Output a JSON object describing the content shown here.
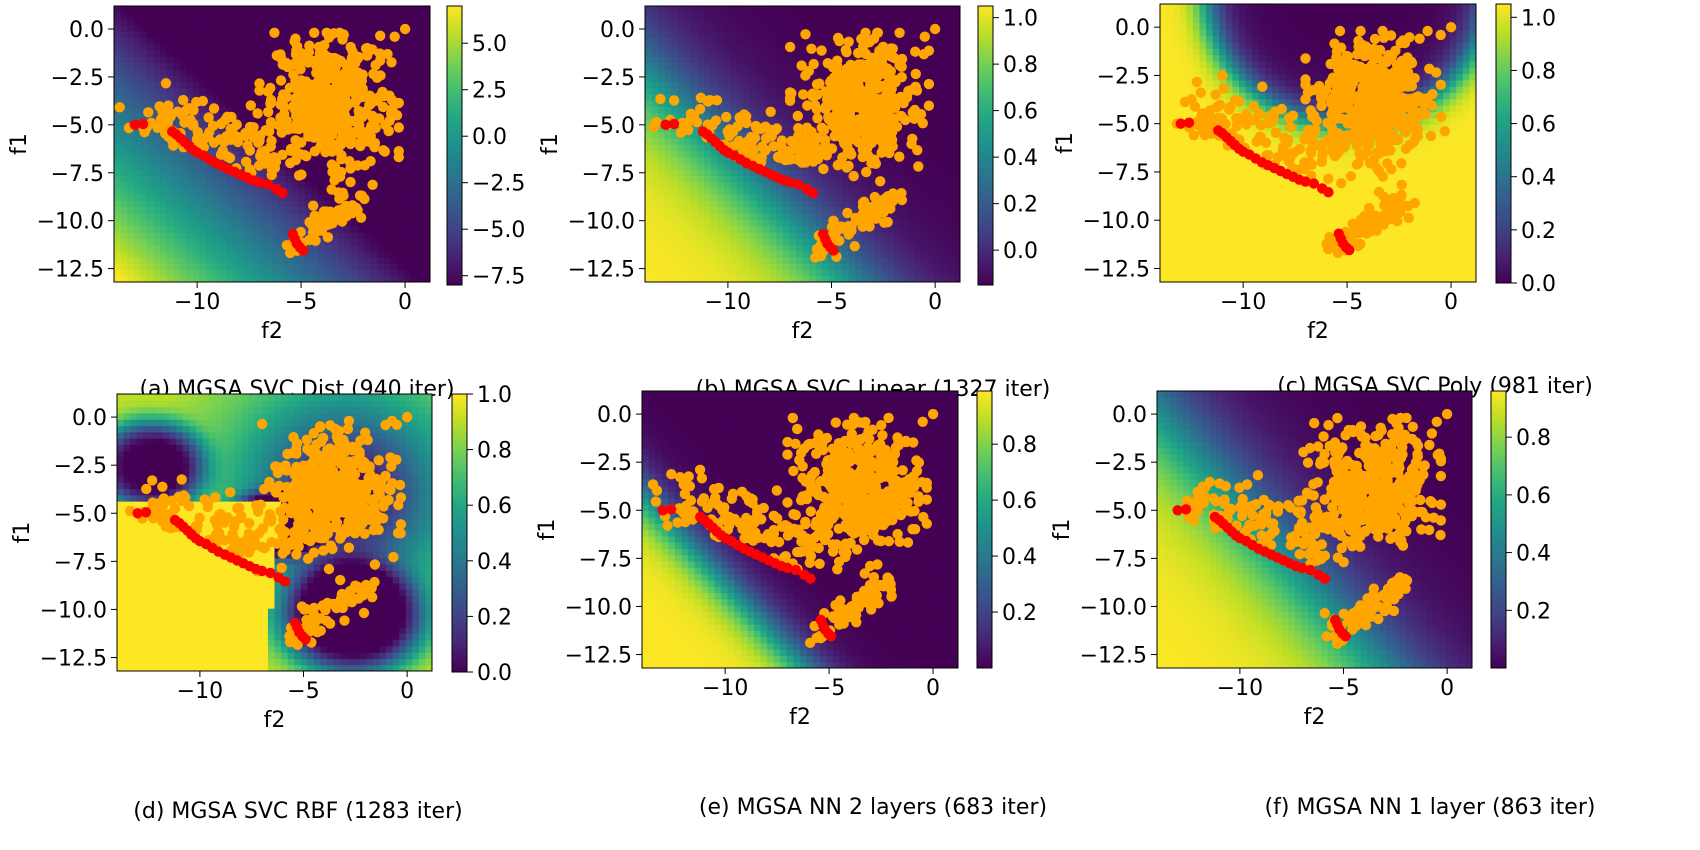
{
  "figure": {
    "panels": [
      {
        "id": "a",
        "caption": "(a) MGSA SVC Dist (940 iter)"
      },
      {
        "id": "b",
        "caption": "(b) MGSA SVC Linear (1327 iter)"
      },
      {
        "id": "c",
        "caption": "(c) MGSA SVC Poly (981 iter)"
      },
      {
        "id": "d",
        "caption": "(d) MGSA SVC RBF (1283 iter)"
      },
      {
        "id": "e",
        "caption": "(e) MGSA NN 2 layers (683 iter)"
      },
      {
        "id": "f",
        "caption": "(f) MGSA NN 1 layer (863 iter)"
      }
    ]
  },
  "chart_data": [
    {
      "type": "heatmap",
      "surface": "linear-distance",
      "xlabel": "f2",
      "ylabel": "f1",
      "xlim": [
        -14,
        1.2
      ],
      "ylim": [
        -13.2,
        1.2
      ],
      "xticks": [
        -10,
        -5,
        0
      ],
      "xtick_labels": [
        "−10",
        "−5",
        "0"
      ],
      "yticks": [
        0,
        -2.5,
        -5,
        -7.5,
        -10,
        -12.5
      ],
      "ytick_labels": [
        "0.0",
        "−2.5",
        "−5.0",
        "−7.5",
        "−10.0",
        "−12.5"
      ],
      "colorbar": {
        "min": -8,
        "max": 7,
        "ticks": [
          5,
          2.5,
          0,
          -2.5,
          -5,
          -7.5
        ],
        "tick_labels": [
          "5.0",
          "2.5",
          "0.0",
          "−2.5",
          "−5.0",
          "−7.5"
        ]
      },
      "colors": {
        "pareto": "#ff0000",
        "samples": "#ffa500"
      }
    },
    {
      "type": "heatmap",
      "surface": "linear-probability",
      "xlabel": "f2",
      "ylabel": "f1",
      "xlim": [
        -14,
        1.2
      ],
      "ylim": [
        -13.2,
        1.2
      ],
      "xticks": [
        -10,
        -5,
        0
      ],
      "xtick_labels": [
        "−10",
        "−5",
        "0"
      ],
      "yticks": [
        0,
        -2.5,
        -5,
        -7.5,
        -10,
        -12.5
      ],
      "ytick_labels": [
        "0.0",
        "−2.5",
        "−5.0",
        "−7.5",
        "−10.0",
        "−12.5"
      ],
      "colorbar": {
        "min": -0.15,
        "max": 1.05,
        "ticks": [
          1.0,
          0.8,
          0.6,
          0.4,
          0.2,
          0.0
        ],
        "tick_labels": [
          "1.0",
          "0.8",
          "0.6",
          "0.4",
          "0.2",
          "0.0"
        ]
      },
      "colors": {
        "pareto": "#ff0000",
        "samples": "#ffa500"
      }
    },
    {
      "type": "heatmap",
      "surface": "polynomial",
      "xlabel": "f2",
      "ylabel": "f1",
      "xlim": [
        -14,
        1.2
      ],
      "ylim": [
        -13.2,
        1.2
      ],
      "xticks": [
        -10,
        -5,
        0
      ],
      "xtick_labels": [
        "−10",
        "−5",
        "0"
      ],
      "yticks": [
        0,
        -2.5,
        -5,
        -7.5,
        -10,
        -12.5
      ],
      "ytick_labels": [
        "0.0",
        "−2.5",
        "−5.0",
        "−7.5",
        "−10.0",
        "−12.5"
      ],
      "colorbar": {
        "min": 0.0,
        "max": 1.05,
        "ticks": [
          1.0,
          0.8,
          0.6,
          0.4,
          0.2,
          0.0
        ],
        "tick_labels": [
          "1.0",
          "0.8",
          "0.6",
          "0.4",
          "0.2",
          "0.0"
        ]
      },
      "colors": {
        "pareto": "#ff0000",
        "samples": "#ffa500"
      }
    },
    {
      "type": "heatmap",
      "surface": "rbf",
      "xlabel": "f2",
      "ylabel": "f1",
      "xlim": [
        -14,
        1.2
      ],
      "ylim": [
        -13.2,
        1.2
      ],
      "xticks": [
        -10,
        -5,
        0
      ],
      "xtick_labels": [
        "−10",
        "−5",
        "0"
      ],
      "yticks": [
        0,
        -2.5,
        -5,
        -7.5,
        -10,
        -12.5
      ],
      "ytick_labels": [
        "0.0",
        "−2.5",
        "−5.0",
        "−7.5",
        "−10.0",
        "−12.5"
      ],
      "colorbar": {
        "min": 0.0,
        "max": 1.0,
        "ticks": [
          1.0,
          0.8,
          0.6,
          0.4,
          0.2,
          0.0
        ],
        "tick_labels": [
          "1.0",
          "0.8",
          "0.6",
          "0.4",
          "0.2",
          "0.0"
        ]
      },
      "colors": {
        "pareto": "#ff0000",
        "samples": "#ffa500"
      }
    },
    {
      "type": "heatmap",
      "surface": "nn2",
      "xlabel": "f2",
      "ylabel": "f1",
      "xlim": [
        -14,
        1.2
      ],
      "ylim": [
        -13.2,
        1.2
      ],
      "xticks": [
        -10,
        -5,
        0
      ],
      "xtick_labels": [
        "−10",
        "−5",
        "0"
      ],
      "yticks": [
        0,
        -2.5,
        -5,
        -7.5,
        -10,
        -12.5
      ],
      "ytick_labels": [
        "0.0",
        "−2.5",
        "−5.0",
        "−7.5",
        "−10.0",
        "−12.5"
      ],
      "colorbar": {
        "min": 0.0,
        "max": 0.99,
        "ticks": [
          0.8,
          0.6,
          0.4,
          0.2
        ],
        "tick_labels": [
          "0.8",
          "0.6",
          "0.4",
          "0.2"
        ]
      },
      "colors": {
        "pareto": "#ff0000",
        "samples": "#ffa500"
      }
    },
    {
      "type": "heatmap",
      "surface": "nn1",
      "xlabel": "f2",
      "ylabel": "f1",
      "xlim": [
        -14,
        1.2
      ],
      "ylim": [
        -13.2,
        1.2
      ],
      "xticks": [
        -10,
        -5,
        0
      ],
      "xtick_labels": [
        "−10",
        "−5",
        "0"
      ],
      "yticks": [
        0,
        -2.5,
        -5,
        -7.5,
        -10,
        -12.5
      ],
      "ytick_labels": [
        "0.0",
        "−2.5",
        "−5.0",
        "−7.5",
        "−10.0",
        "−12.5"
      ],
      "colorbar": {
        "min": 0.0,
        "max": 0.96,
        "ticks": [
          0.8,
          0.6,
          0.4,
          0.2
        ],
        "tick_labels": [
          "0.8",
          "0.6",
          "0.4",
          "0.2"
        ]
      },
      "colors": {
        "pareto": "#ff0000",
        "samples": "#ffa500"
      }
    }
  ],
  "pareto_front": [
    [
      -13.0,
      -5.0
    ],
    [
      -12.6,
      -4.95
    ],
    [
      -11.2,
      -5.35
    ],
    [
      -11.0,
      -5.5
    ],
    [
      -10.8,
      -5.7
    ],
    [
      -10.6,
      -5.9
    ],
    [
      -10.4,
      -6.1
    ],
    [
      -10.2,
      -6.3
    ],
    [
      -10.0,
      -6.45
    ],
    [
      -9.7,
      -6.6
    ],
    [
      -9.4,
      -6.8
    ],
    [
      -9.1,
      -7.0
    ],
    [
      -8.8,
      -7.15
    ],
    [
      -8.5,
      -7.3
    ],
    [
      -8.2,
      -7.45
    ],
    [
      -7.9,
      -7.6
    ],
    [
      -7.6,
      -7.75
    ],
    [
      -7.3,
      -7.9
    ],
    [
      -7.0,
      -8.0
    ],
    [
      -6.6,
      -8.1
    ],
    [
      -6.2,
      -8.35
    ],
    [
      -5.9,
      -8.55
    ],
    [
      -5.4,
      -10.7
    ],
    [
      -5.3,
      -10.95
    ],
    [
      -5.2,
      -11.2
    ],
    [
      -5.05,
      -11.4
    ],
    [
      -4.9,
      -11.55
    ]
  ]
}
